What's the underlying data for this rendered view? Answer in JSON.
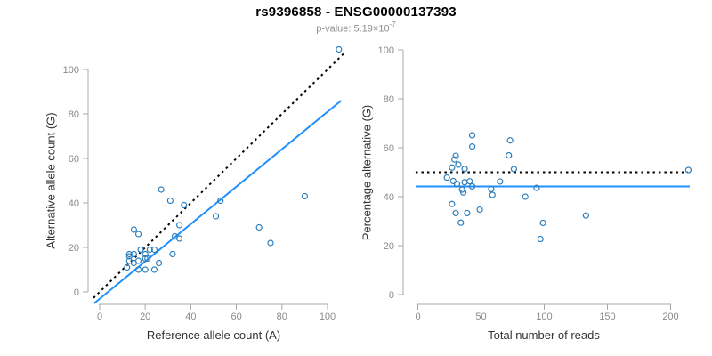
{
  "header": {
    "title": "rs9396858 - ENSG00000137393",
    "pvalue_label": "p-value: 5.19×10",
    "pvalue_exponent": "-7"
  },
  "colors": {
    "line_blue": "#1e90ff",
    "point_blue": "#2e7ebc",
    "dotted_black": "#000000",
    "axis_line": "#a8a8a8",
    "tick_text": "#8a8a8a",
    "axis_title_text": "#333333",
    "subtitle_text": "#8f8f8f"
  },
  "chart_data": [
    {
      "type": "scatter",
      "panel": "left",
      "xlabel": "Reference allele count (A)",
      "ylabel": "Alternative allele count (G)",
      "xlim": [
        0,
        100
      ],
      "ylim": [
        0,
        100
      ],
      "xticks": [
        0,
        20,
        40,
        60,
        80,
        100
      ],
      "yticks": [
        0,
        20,
        40,
        60,
        80,
        100
      ],
      "grid": false,
      "legend": false,
      "points": [
        [
          15,
          28
        ],
        [
          27,
          46
        ],
        [
          17,
          26
        ],
        [
          13,
          17
        ],
        [
          31,
          41
        ],
        [
          13,
          16
        ],
        [
          15,
          17
        ],
        [
          13,
          14
        ],
        [
          18,
          19
        ],
        [
          37,
          39
        ],
        [
          105,
          109
        ],
        [
          12,
          11
        ],
        [
          15,
          13
        ],
        [
          20,
          17
        ],
        [
          22,
          19
        ],
        [
          35,
          30
        ],
        [
          17,
          14
        ],
        [
          24,
          19
        ],
        [
          20,
          15
        ],
        [
          21,
          15
        ],
        [
          33,
          25
        ],
        [
          35,
          24
        ],
        [
          51,
          34
        ],
        [
          53,
          41
        ],
        [
          17,
          10
        ],
        [
          20,
          10
        ],
        [
          26,
          13
        ],
        [
          32,
          17
        ],
        [
          24,
          10
        ],
        [
          90,
          43
        ],
        [
          70,
          29
        ],
        [
          75,
          22
        ]
      ],
      "lines": [
        {
          "name": "identity-line",
          "style": "dotted",
          "color": "dotted_black",
          "x1": -2.7,
          "y1": -2.7,
          "x2": 107.5,
          "y2": 107.5
        },
        {
          "name": "fit-line",
          "style": "solid",
          "color": "line_blue",
          "x1": -2.5,
          "y1": -5.2,
          "x2": 106,
          "y2": 86
        }
      ]
    },
    {
      "type": "scatter",
      "panel": "right",
      "xlabel": "Total number of reads",
      "ylabel": "Percentage alternative (G)",
      "xlim": [
        0,
        200
      ],
      "ylim": [
        0,
        100
      ],
      "xticks": [
        0,
        50,
        100,
        150,
        200
      ],
      "yticks": [
        0,
        20,
        40,
        60,
        80,
        100
      ],
      "grid": false,
      "legend": false,
      "points": [
        [
          43,
          65.1
        ],
        [
          73,
          63.0
        ],
        [
          43,
          60.5
        ],
        [
          30,
          56.7
        ],
        [
          72,
          56.9
        ],
        [
          29,
          55.2
        ],
        [
          32,
          53.1
        ],
        [
          27,
          51.9
        ],
        [
          37,
          51.4
        ],
        [
          76,
          51.3
        ],
        [
          214,
          50.9
        ],
        [
          23,
          47.8
        ],
        [
          28,
          46.4
        ],
        [
          37,
          45.9
        ],
        [
          41,
          46.3
        ],
        [
          65,
          46.2
        ],
        [
          31,
          45.2
        ],
        [
          43,
          44.2
        ],
        [
          35,
          42.9
        ],
        [
          36,
          41.7
        ],
        [
          58,
          43.1
        ],
        [
          59,
          40.7
        ],
        [
          85,
          40.0
        ],
        [
          94,
          43.6
        ],
        [
          27,
          37.0
        ],
        [
          30,
          33.3
        ],
        [
          39,
          33.3
        ],
        [
          49,
          34.7
        ],
        [
          34,
          29.4
        ],
        [
          133,
          32.3
        ],
        [
          99,
          29.3
        ],
        [
          97,
          22.7
        ]
      ],
      "lines": [
        {
          "name": "fifty-percent-line",
          "style": "dotted",
          "color": "dotted_black",
          "x1": -1.8,
          "y1": 50,
          "x2": 213.7,
          "y2": 50
        },
        {
          "name": "fit-line",
          "style": "solid",
          "color": "line_blue",
          "x1": -1.8,
          "y1": 44.2,
          "x2": 215.1,
          "y2": 44.2
        }
      ]
    }
  ]
}
